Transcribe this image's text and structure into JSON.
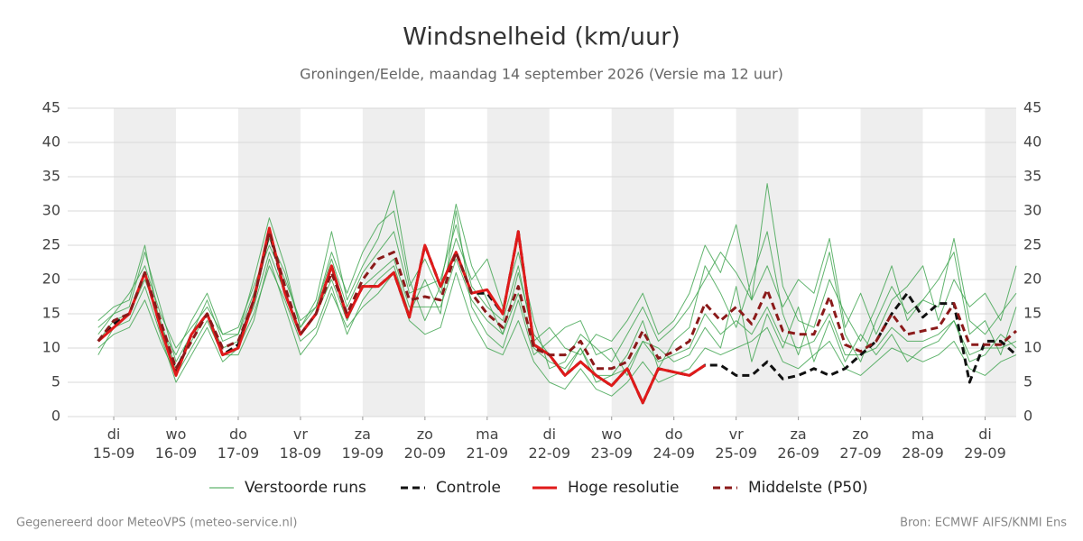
{
  "chart_data": {
    "type": "line",
    "title": "Windsnelheid (km/uur)",
    "subtitle": "Groningen/Eelde, maandag 14 september 2026 (Versie ma 12 uur)",
    "footer_left": "Gegenereerd door MeteoVPS (meteo-service.nl)",
    "footer_right": "Bron: ECMWF AIFS/KNMI Ens",
    "x": [
      14.75,
      15,
      15.25,
      15.5,
      15.75,
      16,
      16.25,
      16.5,
      16.75,
      17,
      17.25,
      17.5,
      17.75,
      18,
      18.25,
      18.5,
      18.75,
      19,
      19.25,
      19.5,
      19.75,
      20,
      20.25,
      20.5,
      20.75,
      21,
      21.25,
      21.5,
      21.75,
      22,
      22.25,
      22.5,
      22.75,
      23,
      23.25,
      23.5,
      23.75,
      24,
      24.25,
      24.5,
      24.75,
      25,
      25.25,
      25.5,
      25.75,
      26,
      26.25,
      26.5,
      26.75,
      27,
      27.25,
      27.5,
      27.75,
      28,
      28.25,
      28.5,
      28.75,
      29,
      29.25,
      29.5
    ],
    "xlim": [
      14.26,
      29.5
    ],
    "xticks": [
      {
        "value": 15,
        "label": "di 15-09"
      },
      {
        "value": 16,
        "label": "wo 16-09"
      },
      {
        "value": 17,
        "label": "do 17-09"
      },
      {
        "value": 18,
        "label": "vr 18-09"
      },
      {
        "value": 19,
        "label": "za 19-09"
      },
      {
        "value": 20,
        "label": "zo 20-09"
      },
      {
        "value": 21,
        "label": "ma 21-09"
      },
      {
        "value": 22,
        "label": "di 22-09"
      },
      {
        "value": 23,
        "label": "wo 23-09"
      },
      {
        "value": 24,
        "label": "do 24-09"
      },
      {
        "value": 25,
        "label": "vr 25-09"
      },
      {
        "value": 26,
        "label": "za 26-09"
      },
      {
        "value": 27,
        "label": "zo 27-09"
      },
      {
        "value": 28,
        "label": "ma 28-09"
      },
      {
        "value": 29,
        "label": "di 29-09"
      }
    ],
    "ylim": [
      0,
      45
    ],
    "yticks": [
      0,
      5,
      10,
      15,
      20,
      25,
      30,
      35,
      40,
      45
    ],
    "grid": true,
    "ensemble": {
      "name": "Verstoorde runs",
      "color": "#3aa14a",
      "members": [
        [
          12,
          15,
          16,
          24,
          16,
          8,
          12,
          17,
          11,
          12,
          20,
          29,
          22,
          13,
          17,
          27,
          17,
          22,
          26,
          33,
          20,
          14,
          19,
          31,
          22,
          17,
          12,
          21,
          12,
          9,
          6,
          10,
          5,
          6,
          9,
          14,
          7,
          11,
          13,
          22,
          18,
          13,
          20,
          27,
          15,
          9,
          16,
          24,
          12,
          8,
          14,
          19,
          15,
          17,
          20,
          24,
          12,
          14,
          9,
          16
        ],
        [
          9,
          13,
          14,
          19,
          12,
          5,
          9,
          13,
          8,
          10,
          15,
          22,
          17,
          11,
          13,
          19,
          12,
          17,
          20,
          22,
          15,
          20,
          15,
          30,
          16,
          12,
          10,
          17,
          9,
          11,
          13,
          14,
          9,
          10,
          6,
          11,
          10,
          8,
          9,
          13,
          10,
          19,
          8,
          15,
          10,
          16,
          8,
          14,
          8,
          12,
          9,
          12,
          8,
          10,
          11,
          14,
          8,
          9,
          12,
          10
        ],
        [
          14,
          16,
          17,
          25,
          13,
          9,
          14,
          18,
          12,
          13,
          19,
          25,
          20,
          14,
          16,
          24,
          18,
          24,
          28,
          30,
          19,
          23,
          18,
          26,
          20,
          23,
          16,
          24,
          14,
          7,
          8,
          12,
          10,
          8,
          12,
          16,
          11,
          13,
          16,
          20,
          24,
          21,
          17,
          34,
          19,
          14,
          13,
          20,
          15,
          11,
          16,
          22,
          14,
          17,
          16,
          26,
          14,
          12,
          15,
          18
        ],
        [
          10,
          12,
          13,
          17,
          11,
          6,
          10,
          14,
          9,
          9,
          14,
          23,
          16,
          9,
          12,
          18,
          13,
          16,
          18,
          21,
          14,
          12,
          13,
          21,
          14,
          10,
          9,
          14,
          8,
          5,
          4,
          7,
          4,
          3,
          5,
          8,
          5,
          6,
          7,
          10,
          9,
          10,
          11,
          13,
          8,
          7,
          9,
          11,
          7,
          6,
          8,
          10,
          9,
          8,
          9,
          11,
          7,
          6,
          8,
          9
        ],
        [
          13,
          15,
          18,
          22,
          15,
          10,
          13,
          16,
          12,
          12,
          18,
          26,
          21,
          13,
          16,
          23,
          16,
          21,
          24,
          27,
          18,
          19,
          20,
          28,
          19,
          16,
          14,
          22,
          11,
          13,
          10,
          9,
          12,
          11,
          14,
          18,
          12,
          14,
          18,
          25,
          21,
          28,
          17,
          22,
          16,
          20,
          18,
          26,
          13,
          18,
          12,
          17,
          19,
          22,
          14,
          20,
          16,
          18,
          14,
          22
        ],
        [
          11,
          14,
          15,
          20,
          14,
          7,
          11,
          15,
          10,
          11,
          16,
          24,
          18,
          12,
          15,
          20,
          14,
          19,
          21,
          23,
          16,
          16,
          16,
          23,
          17,
          14,
          12,
          18,
          10,
          8,
          7,
          10,
          6,
          6,
          7,
          11,
          8,
          9,
          10,
          15,
          12,
          14,
          12,
          16,
          11,
          10,
          11,
          15,
          9,
          9,
          10,
          13,
          11,
          11,
          12,
          14,
          9,
          10,
          10,
          11
        ]
      ]
    },
    "series": [
      {
        "name": "Controle",
        "color": "#111111",
        "dashed": true,
        "values": [
          11,
          13.5,
          15,
          21,
          13,
          6.5,
          12,
          15,
          9,
          10.5,
          17,
          27,
          18,
          12,
          15,
          22,
          14.5,
          19,
          19,
          21,
          14.5,
          25,
          19,
          24,
          18,
          18,
          15,
          27,
          10.5,
          9,
          6,
          8,
          6,
          4.5,
          7,
          2,
          7,
          6.5,
          6,
          7.5,
          7.5,
          6,
          6,
          8,
          5.5,
          6,
          7,
          6,
          7,
          9,
          11,
          15,
          18,
          14.5,
          16.5,
          16.5,
          5,
          11,
          11,
          9
        ]
      },
      {
        "name": "Hoge resolutie",
        "color": "#e01a1a",
        "dashed": false,
        "values": [
          11,
          13,
          15,
          21,
          13,
          6,
          12,
          15,
          9,
          10,
          17,
          27.5,
          18,
          12,
          15,
          22,
          14.5,
          19,
          19,
          21,
          14.5,
          25,
          19,
          24,
          18,
          18.5,
          15,
          27,
          10.5,
          9,
          6,
          8,
          6,
          4.5,
          7,
          2,
          7,
          6.5,
          6,
          7.5,
          null,
          null,
          null,
          null,
          null,
          null,
          null,
          null,
          null,
          null,
          null,
          null,
          null,
          null,
          null,
          null,
          null,
          null,
          null,
          null
        ]
      },
      {
        "name": "Middelste (P50)",
        "color": "#8b1a1a",
        "dashed": true,
        "values": [
          11,
          14,
          15,
          21,
          14,
          7,
          11,
          15,
          10,
          11,
          17,
          27,
          19,
          12,
          15,
          21,
          15,
          20,
          23,
          24,
          17,
          17.5,
          17,
          24,
          18,
          15,
          13,
          19,
          10,
          9,
          9,
          11,
          7,
          7,
          8,
          12.5,
          8.5,
          9.5,
          11,
          16.5,
          14,
          16,
          13.5,
          18.5,
          12.5,
          12,
          12,
          17.5,
          10.5,
          9.5,
          11,
          15,
          12,
          12.5,
          13,
          16.5,
          10.5,
          10.5,
          10.5,
          12.5
        ]
      }
    ]
  }
}
